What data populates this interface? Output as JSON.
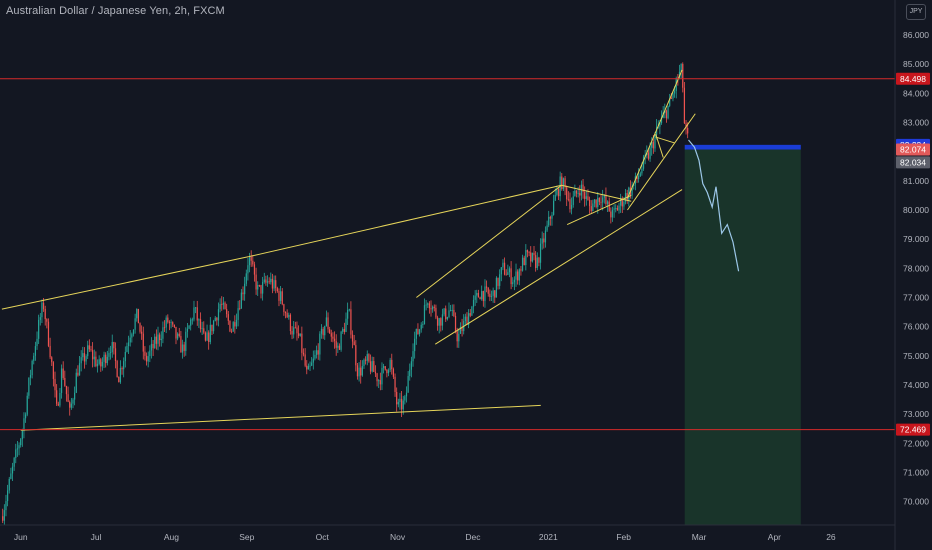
{
  "chart_title": "Australian Dollar / Japanese Yen, 2h, FXCM",
  "currency_label": "JPY",
  "colors": {
    "background": "#131722",
    "candle_up": "#26a69a",
    "candle_down": "#ef5350",
    "trendline": "#e6d55a",
    "horizontal_level": "#d42a2a",
    "target_zone": "#1b3a2c",
    "entry_line": "#1a3dd6",
    "projection": "#9cc7e8"
  },
  "chart_data": {
    "type": "candlestick",
    "title": "Australian Dollar / Japanese Yen, 2h, FXCM",
    "y_ticks": [
      70.0,
      71.0,
      72.0,
      73.0,
      74.0,
      75.0,
      76.0,
      77.0,
      78.0,
      79.0,
      80.0,
      81.0,
      82.0,
      83.0,
      84.0,
      85.0,
      86.0
    ],
    "ylim": [
      69.2,
      87.2
    ],
    "x_ticks": [
      {
        "label": "Jun",
        "t": 0.5
      },
      {
        "label": "Jul",
        "t": 2.5
      },
      {
        "label": "Aug",
        "t": 4.5
      },
      {
        "label": "Sep",
        "t": 6.5
      },
      {
        "label": "Oct",
        "t": 8.5
      },
      {
        "label": "Nov",
        "t": 10.5
      },
      {
        "label": "Dec",
        "t": 12.5
      },
      {
        "label": "2021",
        "t": 14.5
      },
      {
        "label": "Feb",
        "t": 16.5
      },
      {
        "label": "Mar",
        "t": 18.5
      },
      {
        "label": "Apr",
        "t": 20.5
      },
      {
        "label": "26",
        "t": 22
      }
    ],
    "price_series": [
      [
        0,
        69.5
      ],
      [
        0.3,
        71.2
      ],
      [
        0.55,
        72.5
      ],
      [
        0.8,
        74.8
      ],
      [
        1.0,
        76.2
      ],
      [
        1.1,
        76.8
      ],
      [
        1.3,
        75.0
      ],
      [
        1.45,
        73.1
      ],
      [
        1.6,
        74.6
      ],
      [
        1.8,
        73.0
      ],
      [
        2.0,
        74.5
      ],
      [
        2.3,
        75.2
      ],
      [
        2.6,
        74.6
      ],
      [
        2.9,
        75.4
      ],
      [
        3.1,
        74.3
      ],
      [
        3.4,
        75.8
      ],
      [
        3.6,
        76.4
      ],
      [
        3.8,
        74.8
      ],
      [
        4.1,
        75.5
      ],
      [
        4.4,
        76.2
      ],
      [
        4.8,
        75.2
      ],
      [
        5.1,
        76.6
      ],
      [
        5.4,
        75.4
      ],
      [
        5.8,
        76.8
      ],
      [
        6.1,
        75.9
      ],
      [
        6.4,
        77.3
      ],
      [
        6.55,
        78.4
      ],
      [
        6.8,
        77.2
      ],
      [
        7.1,
        77.6
      ],
      [
        7.4,
        77.0
      ],
      [
        7.7,
        75.9
      ],
      [
        7.9,
        75.6
      ],
      [
        8.1,
        74.3
      ],
      [
        8.3,
        74.9
      ],
      [
        8.6,
        76.2
      ],
      [
        8.9,
        75.2
      ],
      [
        9.2,
        76.5
      ],
      [
        9.45,
        74.4
      ],
      [
        9.7,
        74.8
      ],
      [
        10.0,
        74.2
      ],
      [
        10.3,
        74.8
      ],
      [
        10.5,
        73.2
      ],
      [
        10.7,
        73.4
      ],
      [
        10.9,
        75.4
      ],
      [
        11.1,
        76.0
      ],
      [
        11.3,
        77.0
      ],
      [
        11.6,
        76.2
      ],
      [
        11.9,
        76.6
      ],
      [
        12.1,
        75.6
      ],
      [
        12.4,
        76.5
      ],
      [
        12.7,
        77.2
      ],
      [
        13.0,
        77.0
      ],
      [
        13.3,
        78.0
      ],
      [
        13.6,
        77.6
      ],
      [
        13.9,
        78.4
      ],
      [
        14.2,
        78.2
      ],
      [
        14.5,
        79.5
      ],
      [
        14.7,
        80.5
      ],
      [
        14.85,
        81.0
      ],
      [
        15.1,
        80.2
      ],
      [
        15.35,
        80.8
      ],
      [
        15.6,
        80.1
      ],
      [
        15.9,
        80.5
      ],
      [
        16.2,
        79.8
      ],
      [
        16.5,
        80.4
      ],
      [
        16.8,
        80.9
      ],
      [
        17.0,
        81.5
      ],
      [
        17.2,
        82.0
      ],
      [
        17.35,
        82.6
      ],
      [
        17.55,
        83.2
      ],
      [
        17.75,
        83.7
      ],
      [
        17.95,
        84.6
      ],
      [
        18.05,
        84.8
      ],
      [
        18.12,
        82.7
      ],
      [
        18.22,
        82.4
      ]
    ],
    "projection_series": [
      [
        18.22,
        82.4
      ],
      [
        18.38,
        82.15
      ],
      [
        18.5,
        81.7
      ],
      [
        18.6,
        80.9
      ],
      [
        18.72,
        80.6
      ],
      [
        18.85,
        80.1
      ],
      [
        18.95,
        80.8
      ],
      [
        19.1,
        79.2
      ],
      [
        19.25,
        79.5
      ],
      [
        19.4,
        78.9
      ],
      [
        19.55,
        77.9
      ]
    ],
    "trendlines": [
      {
        "from": [
          0,
          76.6
        ],
        "to": [
          6.55,
          78.4
        ]
      },
      {
        "from": [
          6.55,
          78.4
        ],
        "to": [
          14.85,
          80.85
        ]
      },
      {
        "from": [
          0.5,
          72.45
        ],
        "to": [
          14.3,
          73.3
        ]
      },
      {
        "from": [
          11.0,
          77.0
        ],
        "to": [
          14.85,
          80.85
        ]
      },
      {
        "from": [
          11.5,
          75.4
        ],
        "to": [
          18.05,
          80.7
        ]
      },
      {
        "from": [
          14.85,
          80.85
        ],
        "to": [
          16.7,
          80.3
        ]
      },
      {
        "from": [
          15.0,
          79.5
        ],
        "to": [
          16.7,
          80.5
        ]
      },
      {
        "from": [
          16.6,
          80.4
        ],
        "to": [
          18.05,
          84.8
        ]
      },
      {
        "from": [
          16.6,
          80.0
        ],
        "to": [
          18.4,
          83.3
        ]
      },
      {
        "from": [
          17.35,
          82.5
        ],
        "to": [
          17.85,
          82.3
        ]
      },
      {
        "from": [
          17.35,
          82.6
        ],
        "to": [
          17.55,
          81.8
        ]
      }
    ],
    "horizontal_levels": [
      {
        "value": 84.498,
        "label": "84.498"
      },
      {
        "value": 72.469,
        "label": "72.469"
      }
    ],
    "position": {
      "entry": 82.074,
      "entry_label": "82.074",
      "stop": 82.234,
      "stop_label": "82.234",
      "target": 69.2,
      "t_start": 18.12,
      "t_end": 21.2,
      "current_label": "82.034",
      "current_value": 82.034
    }
  }
}
